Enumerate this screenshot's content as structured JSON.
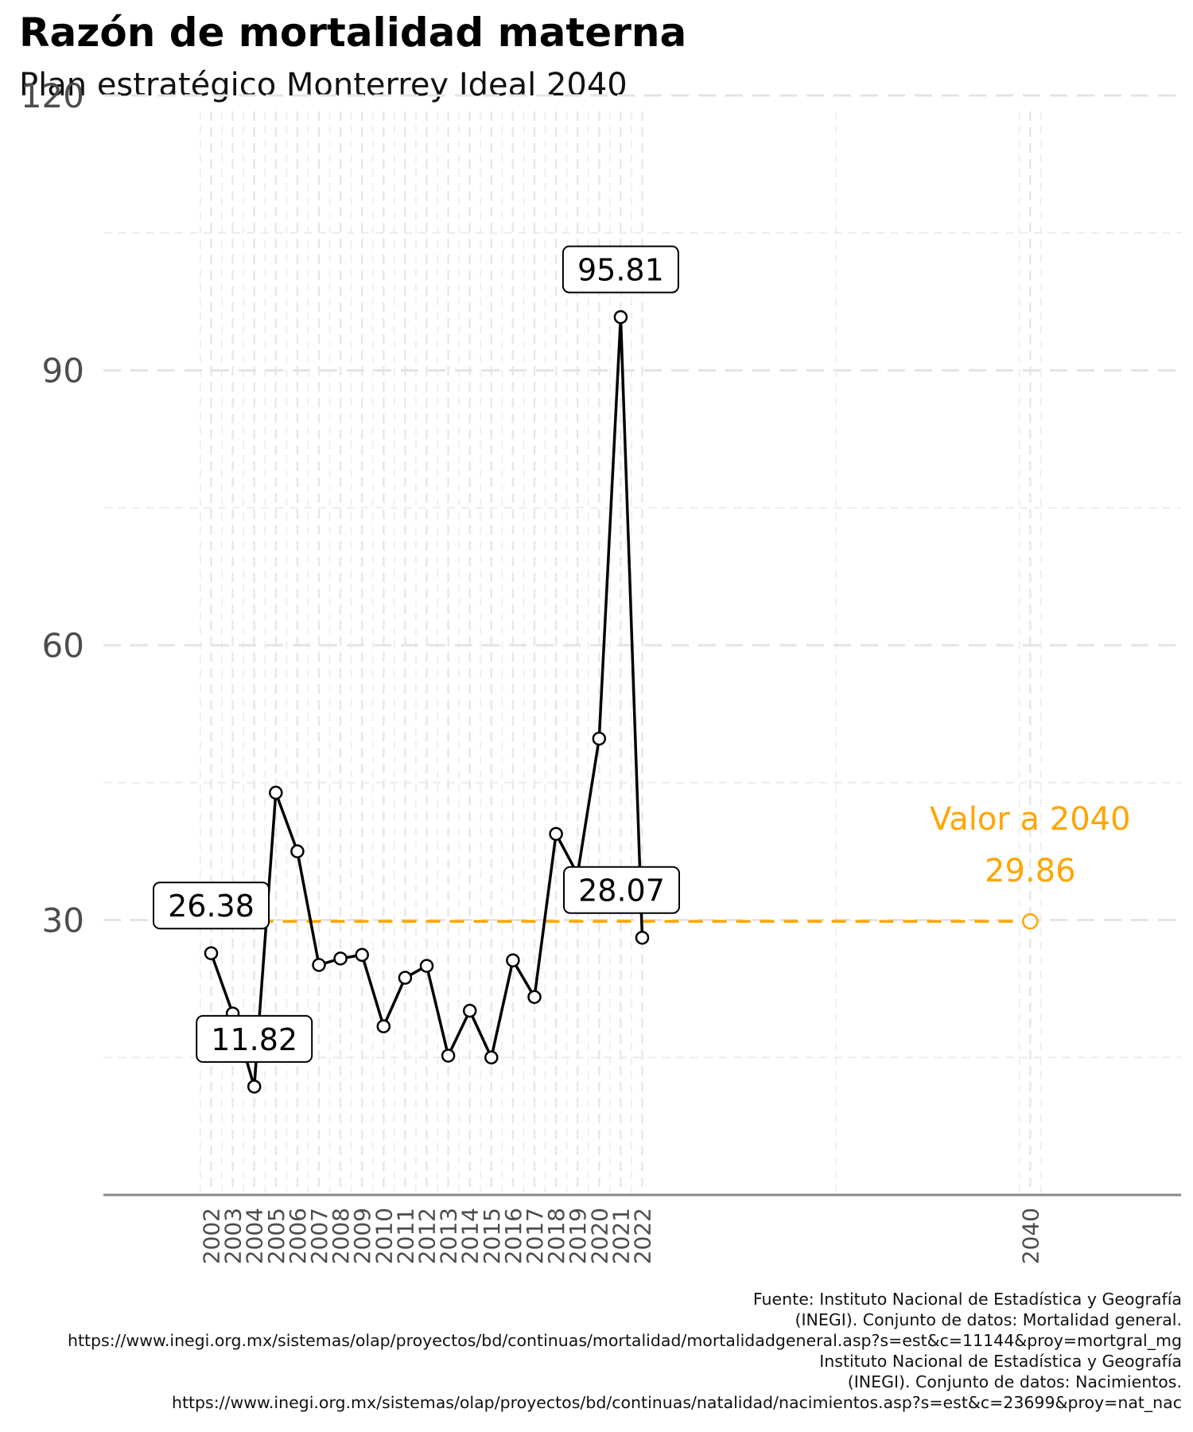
{
  "title": "Razón de mortalidad materna",
  "subtitle": "Plan estratégico Monterrey Ideal 2040",
  "chart_data": {
    "type": "line",
    "x": [
      2002,
      2003,
      2004,
      2005,
      2006,
      2007,
      2008,
      2009,
      2010,
      2011,
      2012,
      2013,
      2014,
      2015,
      2016,
      2017,
      2018,
      2019,
      2020,
      2021,
      2022
    ],
    "series": [
      {
        "values": [
          26.38,
          19.8,
          11.82,
          43.9,
          37.5,
          25.1,
          25.8,
          26.2,
          18.4,
          23.7,
          25.0,
          15.2,
          20.1,
          15.0,
          25.6,
          21.6,
          39.4,
          35.0,
          49.8,
          95.81,
          28.07
        ]
      }
    ],
    "labels": [
      {
        "x": 2002,
        "text": "26.38"
      },
      {
        "x": 2004,
        "text": "11.82"
      },
      {
        "x": 2021,
        "text": "95.81"
      },
      {
        "x": 2022,
        "text": "28.07"
      }
    ],
    "target": {
      "x": 2040,
      "value": 29.86,
      "label": "Valor a 2040",
      "value_label": "29.86",
      "color": "#FFA500",
      "from_x": 2002
    },
    "x_ticks": [
      "2002",
      "2003",
      "2004",
      "2005",
      "2006",
      "2007",
      "2008",
      "2009",
      "2010",
      "2011",
      "2012",
      "2013",
      "2014",
      "2015",
      "2016",
      "2017",
      "2018",
      "2019",
      "2020",
      "2021",
      "2022",
      "2040"
    ],
    "y_ticks": [
      "30",
      "60",
      "90",
      "120"
    ],
    "xlim": [
      1997,
      2047
    ],
    "ylim": [
      0,
      120
    ],
    "line_color": "#000000",
    "grid": true
  },
  "caption": [
    "Fuente: Instituto Nacional de Estadística y Geografía",
    "(INEGI). Conjunto de datos: Mortalidad general.",
    "https://www.inegi.org.mx/sistemas/olap/proyectos/bd/continuas/mortalidad/mortalidadgeneral.asp?s=est&c=11144&proy=mortgral_mg",
    "Instituto Nacional de Estadística y Geografía",
    "(INEGI). Conjunto de datos: Nacimientos.",
    "https://www.inegi.org.mx/sistemas/olap/proyectos/bd/continuas/natalidad/nacimientos.asp?s=est&c=23699&proy=nat_nac"
  ]
}
